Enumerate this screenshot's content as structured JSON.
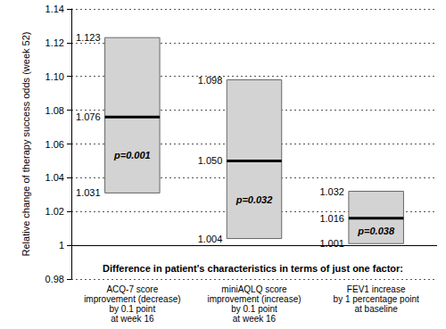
{
  "chart_data": {
    "type": "floating_box",
    "y_label": "Relative change of therapy success odds (week 52)",
    "x_title": "Difference in patient's characteristics in terms of just one factor:",
    "categories": [
      "ACQ-7 score\nimprovement (decrease)\nby 0.1 point\nat week 16",
      "miniAQLQ score\nimprovement (increase)\nby 0.1 point\nat week 16",
      "FEV1 increase\nby 1 percentage point\nat baseline"
    ],
    "values": [
      1.076,
      1.05,
      1.016
    ],
    "value_labels": [
      "1.076",
      "1.050",
      "1.016"
    ],
    "upper": [
      1.123,
      1.098,
      1.032
    ],
    "lower": [
      1.031,
      1.004,
      1.001
    ],
    "p_values": [
      "p=0.001",
      "p=0.032",
      "p=0.038"
    ],
    "baseline": 1,
    "ylim": [
      0.98,
      1.14
    ],
    "yticks": [
      0.98,
      1,
      1.02,
      1.04,
      1.06,
      1.08,
      {
        "value": 1.1,
        "label": "1.10"
      },
      1.12,
      1.14
    ],
    "grid": true,
    "color": "#d3d3d3",
    "data_labels": true
  }
}
